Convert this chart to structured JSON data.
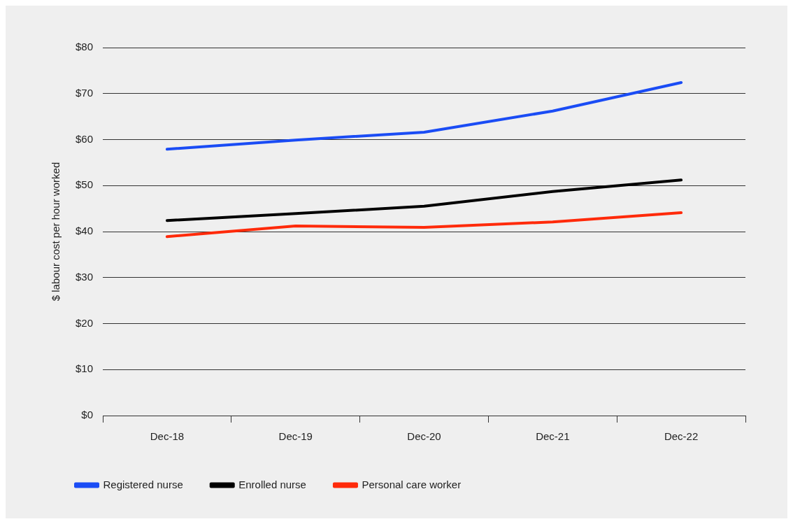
{
  "chart_data": {
    "type": "line",
    "ylabel": "$ labour cost per hour worked",
    "categories": [
      "Dec-18",
      "Dec-19",
      "Dec-20",
      "Dec-21",
      "Dec-22"
    ],
    "series": [
      {
        "name": "Registered nurse",
        "color": "#1a4cf5",
        "values": [
          57.9,
          59.9,
          61.6,
          66.2,
          72.4
        ]
      },
      {
        "name": "Enrolled nurse",
        "color": "#000000",
        "values": [
          42.4,
          43.9,
          45.5,
          48.7,
          51.2
        ]
      },
      {
        "name": "Personal care worker",
        "color": "#ff2a0a",
        "values": [
          38.9,
          41.2,
          40.9,
          42.1,
          44.1
        ]
      }
    ],
    "ylim": [
      0,
      80
    ],
    "yticks": [
      {
        "value": 0,
        "label": "$0"
      },
      {
        "value": 10,
        "label": "$10"
      },
      {
        "value": 20,
        "label": "$20"
      },
      {
        "value": 30,
        "label": "$30"
      },
      {
        "value": 40,
        "label": "$40"
      },
      {
        "value": 50,
        "label": "$50"
      },
      {
        "value": 60,
        "label": "$60"
      },
      {
        "value": 70,
        "label": "$70"
      },
      {
        "value": 80,
        "label": "$80"
      }
    ],
    "grid": "y",
    "legend": "bottom left",
    "marker": "none",
    "line_style": "solid"
  }
}
